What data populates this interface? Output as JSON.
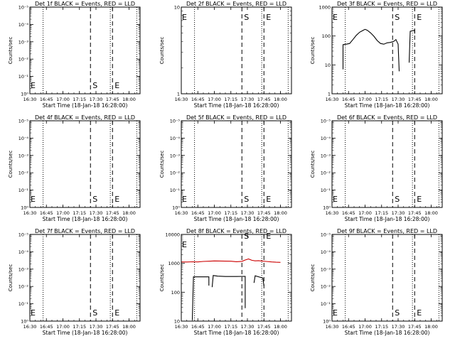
{
  "chart_data": [
    {
      "type": "line",
      "title": "Det 1f BLACK = Events, RED = LLD",
      "ylabel": "Counts/sec",
      "xlabel": "Start Time (18-Jan-18 16:28:00)",
      "x_tick_labels": [
        "16:30",
        "16:45",
        "17:00",
        "17:15",
        "17:30",
        "17:45",
        "18:00"
      ],
      "y_tick_labels": [
        "10⁰",
        "10⁻¹",
        "10⁻²",
        "10⁻³",
        "10⁻⁴",
        "10⁻⁵"
      ],
      "y_scale": "log",
      "ylim": [
        1e-05,
        1
      ],
      "xlim": [
        "16:30",
        "18:10"
      ],
      "markers": [
        {
          "label": "E",
          "x": "16:30"
        },
        {
          "label": "S",
          "x": "17:25"
        },
        {
          "label": "E",
          "x": "17:45"
        }
      ],
      "series": []
    },
    {
      "type": "line",
      "title": "Det 2f BLACK = Events, RED = LLD",
      "ylabel": "Counts/sec",
      "xlabel": "Start Time (18-Jan-18 16:28:00)",
      "x_tick_labels": [
        "16:30",
        "16:45",
        "17:00",
        "17:15",
        "17:30",
        "17:45",
        "18:00"
      ],
      "y_tick_labels": [
        "1",
        "10"
      ],
      "y_scale": "log",
      "ylim": [
        1,
        10
      ],
      "xlim": [
        "16:30",
        "18:10"
      ],
      "markers": [
        {
          "label": "E",
          "x": "16:30"
        },
        {
          "label": "S",
          "x": "17:25"
        },
        {
          "label": "E",
          "x": "17:45"
        }
      ],
      "series": []
    },
    {
      "type": "line",
      "title": "Det 3f BLACK = Events, RED = LLD",
      "ylabel": "Counts/sec",
      "xlabel": "Start Time (18-Jan-18 16:28:00)",
      "x_tick_labels": [
        "16:30",
        "16:45",
        "17:00",
        "17:15",
        "17:30",
        "17:45",
        "18:00"
      ],
      "y_tick_labels": [
        "1",
        "10",
        "100",
        "1000"
      ],
      "y_scale": "log",
      "ylim": [
        1,
        1000
      ],
      "xlim": [
        "16:30",
        "18:10"
      ],
      "markers": [
        {
          "label": "E",
          "x": "16:30"
        },
        {
          "label": "S",
          "x": "17:25"
        },
        {
          "label": "E",
          "x": "17:45"
        }
      ],
      "series": [
        {
          "color": "#000000",
          "segments": [
            [
              [
                "16:40",
                7
              ],
              [
                "16:40",
                50
              ],
              [
                "16:43",
                52
              ],
              [
                "16:46",
                55
              ],
              [
                "16:49",
                75
              ],
              [
                "16:52",
                105
              ],
              [
                "16:55",
                135
              ],
              [
                "16:58",
                155
              ],
              [
                "17:00",
                170
              ],
              [
                "17:02",
                158
              ],
              [
                "17:05",
                128
              ],
              [
                "17:08",
                98
              ],
              [
                "17:11",
                70
              ],
              [
                "17:14",
                55
              ],
              [
                "17:17",
                52
              ],
              [
                "17:20",
                58
              ],
              [
                "17:23",
                60
              ],
              [
                "17:26",
                65
              ],
              [
                "17:28",
                75
              ],
              [
                "17:30",
                52
              ],
              [
                "17:31",
                6
              ]
            ],
            [
              [
                "17:40",
                12
              ],
              [
                "17:41",
                145
              ],
              [
                "17:45",
                158
              ],
              [
                "17:45",
                120
              ]
            ]
          ]
        }
      ]
    },
    {
      "type": "line",
      "title": "Det 4f BLACK = Events, RED = LLD",
      "ylabel": "Counts/sec",
      "xlabel": "Start Time (18-Jan-18 16:28:00)",
      "x_tick_labels": [
        "16:30",
        "16:45",
        "17:00",
        "17:15",
        "17:30",
        "17:45",
        "18:00"
      ],
      "y_tick_labels": [
        "10⁰",
        "10⁻¹",
        "10⁻²",
        "10⁻³",
        "10⁻⁴",
        "10⁻⁵"
      ],
      "y_scale": "log",
      "ylim": [
        1e-05,
        1
      ],
      "xlim": [
        "16:30",
        "18:10"
      ],
      "markers": [
        {
          "label": "E",
          "x": "16:30"
        },
        {
          "label": "S",
          "x": "17:25"
        },
        {
          "label": "E",
          "x": "17:45"
        }
      ],
      "series": []
    },
    {
      "type": "line",
      "title": "Det 5f BLACK = Events, RED = LLD",
      "ylabel": "Counts/sec",
      "xlabel": "Start Time (18-Jan-18 16:28:00)",
      "x_tick_labels": [
        "16:30",
        "16:45",
        "17:00",
        "17:15",
        "17:30",
        "17:45",
        "18:00"
      ],
      "y_tick_labels": [
        "10⁰",
        "10⁻¹",
        "10⁻²",
        "10⁻³",
        "10⁻⁴",
        "10⁻⁵"
      ],
      "y_scale": "log",
      "ylim": [
        1e-05,
        1
      ],
      "xlim": [
        "16:30",
        "18:10"
      ],
      "markers": [
        {
          "label": "E",
          "x": "16:30"
        },
        {
          "label": "S",
          "x": "17:25"
        },
        {
          "label": "E",
          "x": "17:45"
        }
      ],
      "series": []
    },
    {
      "type": "line",
      "title": "Det 6f BLACK = Events, RED = LLD",
      "ylabel": "Counts/sec",
      "xlabel": "Start Time (18-Jan-18 16:28:00)",
      "x_tick_labels": [
        "16:30",
        "16:45",
        "17:00",
        "17:15",
        "17:30",
        "17:45",
        "18:00"
      ],
      "y_tick_labels": [
        "10⁰",
        "10⁻¹",
        "10⁻²",
        "10⁻³",
        "10⁻⁴",
        "10⁻⁵"
      ],
      "y_scale": "log",
      "ylim": [
        1e-05,
        1
      ],
      "xlim": [
        "16:30",
        "18:10"
      ],
      "markers": [
        {
          "label": "E",
          "x": "16:30"
        },
        {
          "label": "S",
          "x": "17:25"
        },
        {
          "label": "E",
          "x": "17:45"
        }
      ],
      "series": []
    },
    {
      "type": "line",
      "title": "Det 7f BLACK = Events, RED = LLD",
      "ylabel": "Counts/sec",
      "xlabel": "Start Time (18-Jan-18 16:28:00)",
      "x_tick_labels": [
        "16:30",
        "16:45",
        "17:00",
        "17:15",
        "17:30",
        "17:45",
        "18:00"
      ],
      "y_tick_labels": [
        "10⁰",
        "10⁻¹",
        "10⁻²",
        "10⁻³",
        "10⁻⁴",
        "10⁻⁵"
      ],
      "y_scale": "log",
      "ylim": [
        1e-05,
        1
      ],
      "xlim": [
        "16:30",
        "18:10"
      ],
      "markers": [
        {
          "label": "E",
          "x": "16:30"
        },
        {
          "label": "S",
          "x": "17:25"
        },
        {
          "label": "E",
          "x": "17:45"
        }
      ],
      "series": []
    },
    {
      "type": "line",
      "title": "Det 8f BLACK = Events, RED = LLD",
      "ylabel": "Counts/sec",
      "xlabel": "Start Time (18-Jan-18 16:28:00)",
      "x_tick_labels": [
        "16:30",
        "16:45",
        "17:00",
        "17:15",
        "17:30",
        "17:45",
        "18:00"
      ],
      "y_tick_labels": [
        "10",
        "100",
        "1000",
        "10000"
      ],
      "y_scale": "log",
      "ylim": [
        10,
        10000
      ],
      "xlim": [
        "16:30",
        "18:10"
      ],
      "markers": [
        {
          "label": "E",
          "x": "16:30"
        },
        {
          "label": "S",
          "x": "17:25"
        },
        {
          "label": "E",
          "x": "17:45"
        }
      ],
      "series": [
        {
          "color": "#cc0000",
          "segments": [
            [
              [
                "16:30",
                1120
              ],
              [
                "16:35",
                1110
              ],
              [
                "16:40",
                1130
              ],
              [
                "16:45",
                1120
              ],
              [
                "16:50",
                1160
              ],
              [
                "16:55",
                1180
              ],
              [
                "17:00",
                1210
              ],
              [
                "17:05",
                1200
              ],
              [
                "17:10",
                1190
              ],
              [
                "17:15",
                1180
              ],
              [
                "17:20",
                1140
              ],
              [
                "17:25",
                1170
              ],
              [
                "17:28",
                1300
              ],
              [
                "17:31",
                1420
              ],
              [
                "17:34",
                1270
              ],
              [
                "17:37",
                1220
              ],
              [
                "17:40",
                1240
              ],
              [
                "17:43",
                1200
              ],
              [
                "17:47",
                1160
              ],
              [
                "17:52",
                1120
              ],
              [
                "17:56",
                1090
              ],
              [
                "18:00",
                1080
              ]
            ]
          ]
        },
        {
          "color": "#000000",
          "segments": [
            [
              [
                "16:40",
                11
              ],
              [
                "16:41",
                340
              ],
              [
                "16:55",
                340
              ],
              [
                "16:55",
                170
              ]
            ],
            [
              [
                "16:58",
                150
              ],
              [
                "16:59",
                380
              ],
              [
                "17:03",
                360
              ],
              [
                "17:10",
                350
              ],
              [
                "17:20",
                350
              ],
              [
                "17:28",
                355
              ],
              [
                "17:28",
                28
              ]
            ],
            [
              [
                "17:36",
                210
              ],
              [
                "17:37",
                370
              ],
              [
                "17:44",
                310
              ],
              [
                "17:45",
                165
              ]
            ]
          ]
        }
      ]
    },
    {
      "type": "line",
      "title": "Det 9f BLACK = Events, RED = LLD",
      "ylabel": "Counts/sec",
      "xlabel": "Start Time (18-Jan-18 16:28:00)",
      "x_tick_labels": [
        "16:30",
        "16:45",
        "17:00",
        "17:15",
        "17:30",
        "17:45",
        "18:00"
      ],
      "y_tick_labels": [
        "10⁰",
        "10⁻¹",
        "10⁻²",
        "10⁻³",
        "10⁻⁴",
        "10⁻⁵"
      ],
      "y_scale": "log",
      "ylim": [
        1e-05,
        1
      ],
      "xlim": [
        "16:30",
        "18:10"
      ],
      "markers": [
        {
          "label": "E",
          "x": "16:30"
        },
        {
          "label": "S",
          "x": "17:25"
        },
        {
          "label": "E",
          "x": "17:45"
        }
      ],
      "series": []
    }
  ]
}
